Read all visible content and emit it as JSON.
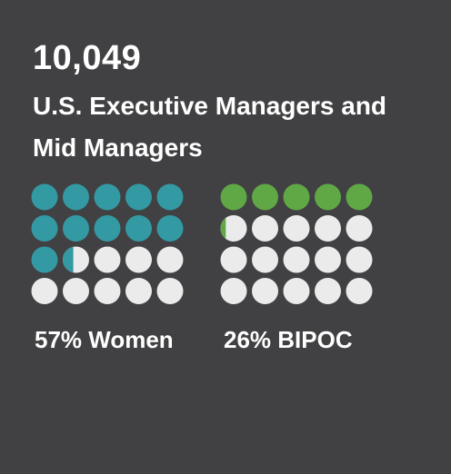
{
  "headline": {
    "value": "10,049",
    "label": "U.S. Executive Managers and Mid Managers"
  },
  "colors": {
    "background": "#414143",
    "empty": "#ebebeb",
    "women": "#3399a3",
    "bipoc": "#5fa845"
  },
  "chart_data": [
    {
      "type": "waffle",
      "name": "women",
      "label": "57% Women",
      "percent": 57,
      "rows": 4,
      "cols": 5,
      "units_per_circle": 5,
      "color": "#3399a3"
    },
    {
      "type": "waffle",
      "name": "bipoc",
      "label": "26% BIPOC",
      "percent": 26,
      "rows": 4,
      "cols": 5,
      "units_per_circle": 5,
      "color": "#5fa845"
    }
  ]
}
